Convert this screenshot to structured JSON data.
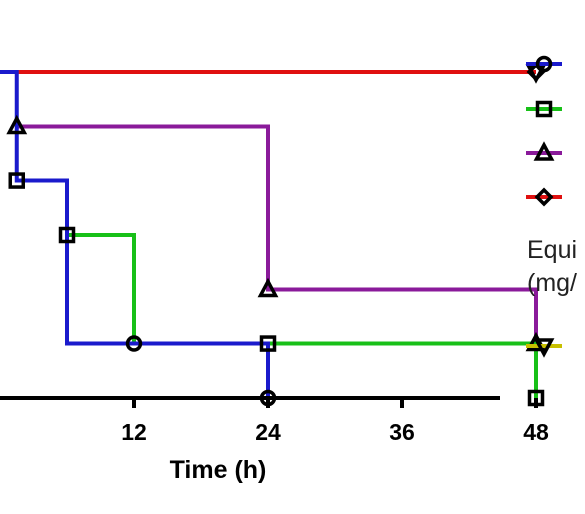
{
  "chart_data": {
    "type": "line",
    "step": true,
    "title": "",
    "xlabel": "Time (h)",
    "ylabel": "",
    "xlim": [
      0,
      48
    ],
    "ylim": [
      0,
      100
    ],
    "x_ticks": [
      12,
      24,
      36,
      48
    ],
    "grid": false,
    "legend_position": "right",
    "series": [
      {
        "color": "#1a1acc",
        "marker": "circle",
        "points": [
          [
            0,
            100
          ],
          [
            1.5,
            100
          ],
          [
            1.5,
            66.7
          ],
          [
            6,
            66.7
          ],
          [
            6,
            16.7
          ],
          [
            24,
            16.7
          ],
          [
            24,
            0
          ]
        ],
        "markers": [
          [
            12,
            16.7
          ],
          [
            24,
            0
          ]
        ]
      },
      {
        "color": "#18c018",
        "marker": "square",
        "points": [
          [
            1.5,
            66.7
          ],
          [
            6,
            66.7
          ],
          [
            6,
            50
          ],
          [
            12,
            50
          ],
          [
            12,
            16.7
          ],
          [
            24,
            16.7
          ],
          [
            48,
            16.7
          ],
          [
            48,
            0
          ]
        ],
        "markers": [
          [
            1.5,
            66.7
          ],
          [
            6,
            50
          ],
          [
            24,
            16.7
          ],
          [
            48,
            0
          ]
        ]
      },
      {
        "color": "#8a1a9a",
        "marker": "triangle",
        "points": [
          [
            1.5,
            83.3
          ],
          [
            24,
            83.3
          ],
          [
            24,
            33.3
          ],
          [
            48,
            33.3
          ],
          [
            48,
            16.7
          ]
        ],
        "markers": [
          [
            1.5,
            83.3
          ],
          [
            24,
            33.3
          ],
          [
            48,
            16.7
          ]
        ]
      },
      {
        "color": "#e01010",
        "marker": "diamond",
        "points": [
          [
            0,
            100
          ],
          [
            48,
            100
          ]
        ],
        "markers": [
          [
            48,
            100
          ]
        ]
      },
      {
        "color": "#c8c000",
        "marker": "triangle-down",
        "points": [
          [
            48,
            100
          ]
        ],
        "markers": [
          [
            48,
            100
          ]
        ]
      }
    ],
    "legend": {
      "entries": [
        {
          "color": "#1a1acc",
          "marker": "circle"
        },
        {
          "color": "#18c018",
          "marker": "square"
        },
        {
          "color": "#8a1a9a",
          "marker": "triangle"
        },
        {
          "color": "#e01010",
          "marker": "diamond"
        },
        {
          "color": "#c8c000",
          "marker": "triangle-down"
        }
      ],
      "heading_line1": "Equi",
      "heading_line2": "(mg/"
    }
  }
}
